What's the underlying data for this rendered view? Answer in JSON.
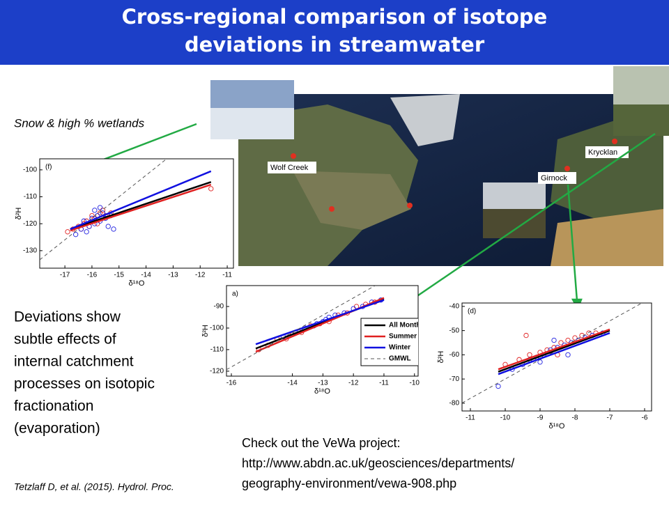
{
  "header": {
    "title": "Cross-regional comparison of isotope deviations in streamwater"
  },
  "left": {
    "note": "Snow & high % wetlands",
    "text": [
      "Deviations show",
      "subtle effects of",
      "internal catchment",
      "processes on isotopic",
      "fractionation",
      "(evaporation)"
    ],
    "citation": "Tetzlaff D, et al. (2015). Hydrol. Proc."
  },
  "map": {
    "sites": [
      "Wolf Creek",
      "Krycklan",
      "Girnock"
    ]
  },
  "link": [
    "Check out the VeWa project:",
    "http://www.abdn.ac.uk/geosciences/departments/",
    "geography-environment/vewa-908.php"
  ],
  "chart_data": [
    {
      "type": "scatter",
      "panel": "(f)",
      "xlabel": "δ¹⁸O",
      "ylabel": "δ²H",
      "xlim": [
        -17.93,
        -10.77
      ],
      "ylim": [
        -136.5,
        -95.9
      ],
      "xticks": [
        -17,
        -16,
        -15,
        -14,
        -13,
        -12,
        -11
      ],
      "yticks": [
        -130,
        -120,
        -110,
        -100
      ],
      "series": [
        {
          "color": "#e02020",
          "x": [
            -16.9,
            -16.7,
            -16.5,
            -16.3,
            -16.2,
            -16.0,
            -15.9,
            -15.7,
            -15.6,
            -15.5,
            -15.8,
            -16.1,
            -16.4,
            -15.3,
            -11.6
          ],
          "values": [
            -123,
            -122,
            -121,
            -120,
            -119,
            -117,
            -118,
            -116,
            -115,
            -117,
            -120,
            -121,
            -122,
            -116,
            -107
          ]
        },
        {
          "color": "#2020e0",
          "x": [
            -16.6,
            -16.4,
            -16.3,
            -16.1,
            -16.0,
            -15.9,
            -15.8,
            -15.7,
            -15.6,
            -15.5,
            -15.4,
            -15.2,
            -16.2,
            -15.9,
            -15.7,
            -15.3
          ],
          "values": [
            -124,
            -122,
            -119,
            -121,
            -118,
            -120,
            -117,
            -119,
            -116,
            -118,
            -121,
            -122,
            -123,
            -115,
            -114,
            -117
          ]
        }
      ],
      "lines": [
        {
          "color": "#555555",
          "dash": true,
          "x": [
            -17.93,
            -13.25
          ],
          "values": [
            -133.4,
            -96
          ]
        },
        {
          "color": "#000000",
          "x": [
            -16.8,
            -11.6
          ],
          "values": [
            -122,
            -104.5
          ]
        },
        {
          "color": "#e02020",
          "x": [
            -16.8,
            -11.6
          ],
          "values": [
            -122.5,
            -105.5
          ]
        },
        {
          "color": "#1010e0",
          "x": [
            -16.8,
            -11.6
          ],
          "values": [
            -122,
            -100.5
          ]
        }
      ]
    },
    {
      "type": "scatter",
      "panel": "a)",
      "xlabel": "δ¹⁸O",
      "ylabel": "δ²H",
      "xlim": [
        -16.16,
        -9.88
      ],
      "ylim": [
        -122.3,
        -80.3
      ],
      "xticks": [
        -16,
        -14,
        -13,
        -12,
        -11,
        -10
      ],
      "yticks": [
        -120,
        -110,
        -100,
        -90
      ],
      "series": [
        {
          "color": "#e02020",
          "x": [
            -15.1,
            -14.8,
            -14.5,
            -14.2,
            -14.0,
            -13.7,
            -13.4,
            -13.1,
            -12.8,
            -12.5,
            -12.2,
            -11.9,
            -11.6,
            -11.3
          ],
          "values": [
            -110,
            -108,
            -105,
            -105,
            -103,
            -102,
            -99,
            -98,
            -97,
            -94,
            -93,
            -90,
            -89,
            -88
          ]
        },
        {
          "color": "#2020e0",
          "x": [
            -14.3,
            -13.9,
            -13.6,
            -13.3,
            -13.0,
            -12.8,
            -12.6,
            -12.3,
            -12.0,
            -11.7,
            -11.4,
            -11.1,
            -13.2,
            -12.9
          ],
          "values": [
            -104,
            -102,
            -100,
            -99,
            -97,
            -95,
            -94,
            -93,
            -91,
            -90,
            -88,
            -87,
            -98,
            -96
          ]
        }
      ],
      "lines": [
        {
          "name": "All Months",
          "color": "#000000",
          "x": [
            -15.2,
            -11
          ],
          "values": [
            -109.5,
            -86.5
          ]
        },
        {
          "name": "Summer",
          "color": "#e02020",
          "x": [
            -15.2,
            -11
          ],
          "values": [
            -111,
            -86
          ]
        },
        {
          "name": "Winter",
          "color": "#1010e0",
          "x": [
            -15.2,
            -11
          ],
          "values": [
            -107.5,
            -87
          ]
        },
        {
          "name": "GMWL",
          "color": "#555555",
          "dash": true,
          "x": [
            -16.16,
            -11.3
          ],
          "values": [
            -119.3,
            -80.4
          ]
        }
      ]
    },
    {
      "type": "scatter",
      "panel": "(d)",
      "xlabel": "δ¹⁸O",
      "ylabel": "δ²H",
      "xlim": [
        -11.24,
        -5.8
      ],
      "ylim": [
        -83.2,
        -38.6
      ],
      "xticks": [
        -11,
        -10,
        -9,
        -8,
        -7,
        -6
      ],
      "yticks": [
        -80,
        -70,
        -60,
        -50,
        -40
      ],
      "series": [
        {
          "color": "#e02020",
          "x": [
            -10,
            -9.6,
            -9.3,
            -9.0,
            -8.8,
            -8.6,
            -8.4,
            -8.2,
            -8.0,
            -7.8,
            -7.6,
            -7.4,
            -9.4,
            -8.5
          ],
          "values": [
            -64,
            -62,
            -60,
            -59,
            -58,
            -57,
            -55,
            -54,
            -53,
            -52,
            -51,
            -51,
            -52,
            -60
          ]
        },
        {
          "color": "#2020e0",
          "x": [
            -10.2,
            -9.8,
            -9.5,
            -9.3,
            -9.1,
            -8.9,
            -8.7,
            -8.5,
            -8.3,
            -8.1,
            -7.9,
            -7.7,
            -7.5,
            -7.2,
            -9.0,
            -8.6,
            -8.2
          ],
          "values": [
            -73,
            -66,
            -64,
            -62,
            -61,
            -60,
            -58,
            -57,
            -56,
            -55,
            -54,
            -53,
            -52,
            -51,
            -63,
            -54,
            -60
          ]
        }
      ],
      "lines": [
        {
          "color": "#555555",
          "dash": true,
          "x": [
            -11.24,
            -6.1
          ],
          "values": [
            -79.9,
            -38.8
          ]
        },
        {
          "color": "#000000",
          "x": [
            -10.2,
            -7
          ],
          "values": [
            -67,
            -50
          ]
        },
        {
          "color": "#e02020",
          "x": [
            -10.2,
            -7
          ],
          "values": [
            -66,
            -49.5
          ]
        },
        {
          "color": "#1010e0",
          "x": [
            -10.2,
            -7
          ],
          "values": [
            -68,
            -51
          ]
        }
      ]
    }
  ]
}
